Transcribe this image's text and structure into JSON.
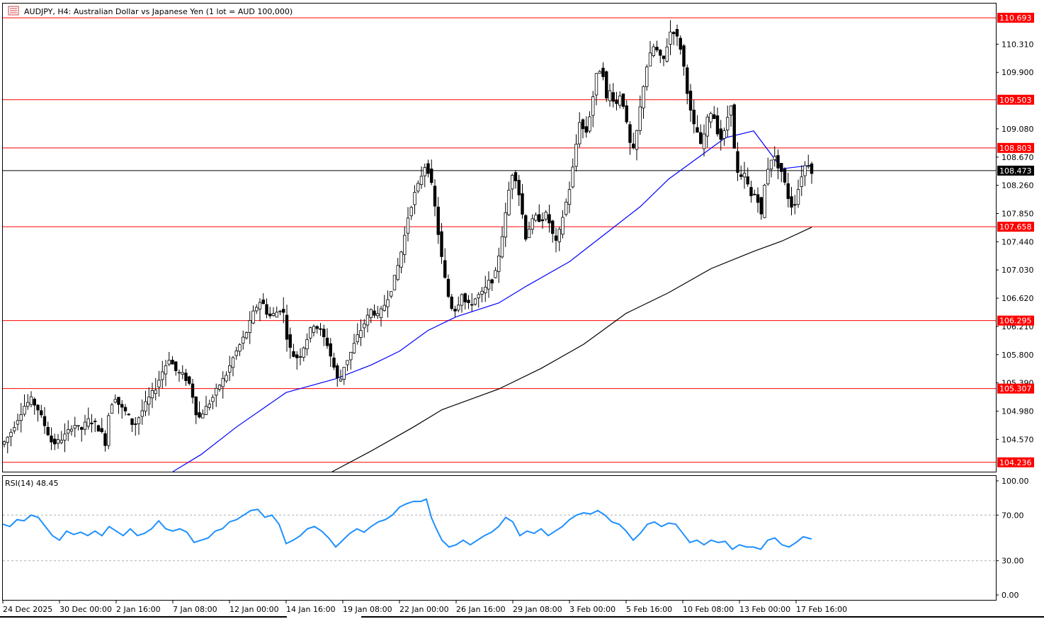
{
  "header": {
    "symbol_label": "AUDJPY, H4:  Australian Dollar vs Japanese Yen (1 lot = AUD 100,000)"
  },
  "colors": {
    "candle_up": "#000000",
    "candle_down": "#000000",
    "level_line": "#ff0000",
    "ma_fast": "#0000ff",
    "ma_slow": "#000000",
    "rsi_line": "#1e90ff",
    "current_price_bg": "#000000"
  },
  "chart_data": [
    {
      "type": "candlestick",
      "title": "AUDJPY, H4:  Australian Dollar vs Japanese Yen (1 lot = AUD 100,000)",
      "ylim": [
        104.1,
        110.9
      ],
      "y_ticks": [
        "110.310",
        "109.900",
        "109.080",
        "108.670",
        "108.260",
        "107.850",
        "107.440",
        "107.030",
        "106.620",
        "106.210",
        "105.800",
        "105.390",
        "104.980",
        "104.570"
      ],
      "x_ticks": [
        "24 Dec 2025",
        "30 Dec 00:00",
        "2 Jan 16:00",
        "7 Jan 08:00",
        "12 Jan 00:00",
        "14 Jan 16:00",
        "19 Jan 08:00",
        "22 Jan 00:00",
        "26 Jan 16:00",
        "29 Jan 08:00",
        "3 Feb 00:00",
        "5 Feb 16:00",
        "10 Feb 08:00",
        "13 Feb 00:00",
        "17 Feb 16:00"
      ],
      "levels": [
        {
          "value": 110.693,
          "label": "110.693"
        },
        {
          "value": 109.503,
          "label": "109.503"
        },
        {
          "value": 108.803,
          "label": "108.803"
        },
        {
          "value": 107.658,
          "label": "107.658"
        },
        {
          "value": 106.295,
          "label": "106.295"
        },
        {
          "value": 105.307,
          "label": "105.307"
        },
        {
          "value": 104.236,
          "label": "104.236"
        }
      ],
      "current_price": {
        "value": 108.473,
        "label": "108.473"
      },
      "price_path": [
        [
          0,
          104.5
        ],
        [
          10,
          104.65
        ],
        [
          20,
          104.85
        ],
        [
          30,
          105.05
        ],
        [
          40,
          105.15
        ],
        [
          50,
          105.0
        ],
        [
          60,
          104.75
        ],
        [
          70,
          104.5
        ],
        [
          80,
          104.55
        ],
        [
          90,
          104.65
        ],
        [
          100,
          104.8
        ],
        [
          110,
          104.7
        ],
        [
          120,
          104.85
        ],
        [
          130,
          104.8
        ],
        [
          140,
          104.65
        ],
        [
          145,
          104.5
        ],
        [
          150,
          105.0
        ],
        [
          158,
          105.2
        ],
        [
          165,
          105.05
        ],
        [
          175,
          104.95
        ],
        [
          185,
          104.75
        ],
        [
          195,
          104.95
        ],
        [
          205,
          105.15
        ],
        [
          215,
          105.3
        ],
        [
          225,
          105.55
        ],
        [
          235,
          105.75
        ],
        [
          245,
          105.55
        ],
        [
          255,
          105.5
        ],
        [
          265,
          105.35
        ],
        [
          275,
          104.85
        ],
        [
          285,
          105.0
        ],
        [
          295,
          105.15
        ],
        [
          305,
          105.35
        ],
        [
          315,
          105.5
        ],
        [
          325,
          105.75
        ],
        [
          335,
          105.95
        ],
        [
          345,
          106.15
        ],
        [
          355,
          106.45
        ],
        [
          365,
          106.6
        ],
        [
          375,
          106.35
        ],
        [
          385,
          106.4
        ],
        [
          395,
          106.5
        ],
        [
          400,
          106.1
        ],
        [
          408,
          105.8
        ],
        [
          418,
          105.75
        ],
        [
          428,
          106.0
        ],
        [
          438,
          106.25
        ],
        [
          448,
          106.15
        ],
        [
          458,
          105.95
        ],
        [
          468,
          105.6
        ],
        [
          475,
          105.35
        ],
        [
          480,
          105.6
        ],
        [
          490,
          105.8
        ],
        [
          500,
          106.05
        ],
        [
          510,
          106.25
        ],
        [
          520,
          106.45
        ],
        [
          530,
          106.35
        ],
        [
          540,
          106.55
        ],
        [
          550,
          106.8
        ],
        [
          558,
          107.1
        ],
        [
          565,
          107.4
        ],
        [
          572,
          107.8
        ],
        [
          580,
          108.1
        ],
        [
          588,
          108.3
        ],
        [
          595,
          108.55
        ],
        [
          602,
          108.45
        ],
        [
          608,
          108.1
        ],
        [
          613,
          107.7
        ],
        [
          618,
          107.3
        ],
        [
          625,
          106.85
        ],
        [
          632,
          106.5
        ],
        [
          640,
          106.45
        ],
        [
          648,
          106.7
        ],
        [
          655,
          106.5
        ],
        [
          662,
          106.55
        ],
        [
          670,
          106.65
        ],
        [
          678,
          106.7
        ],
        [
          686,
          106.85
        ],
        [
          694,
          106.9
        ],
        [
          702,
          107.35
        ],
        [
          710,
          107.85
        ],
        [
          718,
          108.45
        ],
        [
          725,
          108.35
        ],
        [
          732,
          107.95
        ],
        [
          738,
          107.5
        ],
        [
          745,
          107.7
        ],
        [
          752,
          107.8
        ],
        [
          760,
          107.75
        ],
        [
          768,
          107.85
        ],
        [
          776,
          107.55
        ],
        [
          782,
          107.4
        ],
        [
          788,
          107.7
        ],
        [
          795,
          108.0
        ],
        [
          802,
          108.3
        ],
        [
          808,
          108.75
        ],
        [
          815,
          109.25
        ],
        [
          822,
          108.95
        ],
        [
          830,
          109.35
        ],
        [
          838,
          109.85
        ],
        [
          846,
          110.0
        ],
        [
          852,
          109.5
        ],
        [
          858,
          109.65
        ],
        [
          865,
          109.4
        ],
        [
          872,
          109.6
        ],
        [
          878,
          109.35
        ],
        [
          884,
          108.9
        ],
        [
          890,
          108.75
        ],
        [
          896,
          109.1
        ],
        [
          902,
          109.55
        ],
        [
          908,
          109.95
        ],
        [
          914,
          110.15
        ],
        [
          920,
          110.3
        ],
        [
          926,
          110.15
        ],
        [
          932,
          110.05
        ],
        [
          938,
          110.3
        ],
        [
          944,
          110.55
        ],
        [
          950,
          110.45
        ],
        [
          956,
          110.3
        ],
        [
          962,
          109.95
        ],
        [
          968,
          109.5
        ],
        [
          974,
          109.15
        ],
        [
          980,
          109.05
        ],
        [
          986,
          108.8
        ],
        [
          992,
          109.1
        ],
        [
          998,
          109.35
        ],
        [
          1004,
          109.25
        ],
        [
          1010,
          109.0
        ],
        [
          1016,
          108.9
        ],
        [
          1022,
          109.2
        ],
        [
          1028,
          109.45
        ],
        [
          1034,
          108.6
        ],
        [
          1040,
          108.3
        ],
        [
          1046,
          108.45
        ],
        [
          1052,
          108.25
        ],
        [
          1058,
          108.05
        ],
        [
          1064,
          108.2
        ],
        [
          1070,
          107.75
        ],
        [
          1076,
          108.3
        ],
        [
          1082,
          108.6
        ],
        [
          1088,
          108.7
        ],
        [
          1094,
          108.55
        ],
        [
          1100,
          108.45
        ],
        [
          1106,
          108.2
        ],
        [
          1112,
          107.95
        ],
        [
          1118,
          108.0
        ],
        [
          1124,
          108.25
        ],
        [
          1130,
          108.5
        ],
        [
          1136,
          108.6
        ],
        [
          1142,
          108.47
        ]
      ],
      "ma_fast_path": [
        [
          240,
          104.1
        ],
        [
          280,
          104.35
        ],
        [
          330,
          104.75
        ],
        [
          400,
          105.25
        ],
        [
          470,
          105.45
        ],
        [
          520,
          105.65
        ],
        [
          560,
          105.85
        ],
        [
          600,
          106.15
        ],
        [
          640,
          106.35
        ],
        [
          700,
          106.55
        ],
        [
          740,
          106.8
        ],
        [
          800,
          107.15
        ],
        [
          850,
          107.55
        ],
        [
          900,
          107.95
        ],
        [
          940,
          108.35
        ],
        [
          980,
          108.65
        ],
        [
          1020,
          108.95
        ],
        [
          1060,
          109.05
        ],
        [
          1100,
          108.5
        ],
        [
          1140,
          108.55
        ]
      ],
      "ma_slow_path": [
        [
          465,
          104.1
        ],
        [
          520,
          104.4
        ],
        [
          580,
          104.75
        ],
        [
          620,
          105.0
        ],
        [
          700,
          105.3
        ],
        [
          760,
          105.6
        ],
        [
          820,
          105.95
        ],
        [
          880,
          106.4
        ],
        [
          940,
          106.7
        ],
        [
          1000,
          107.05
        ],
        [
          1060,
          107.3
        ],
        [
          1100,
          107.45
        ],
        [
          1142,
          107.65
        ]
      ]
    },
    {
      "type": "line",
      "title": "RSI(14) 48.45",
      "ylim": [
        0,
        100
      ],
      "y_ticks": [
        "100.00",
        "70.00",
        "30.00",
        "0.00"
      ],
      "levels": [
        70,
        30
      ],
      "series": [
        {
          "name": "RSI(14)",
          "values": [
            [
              0,
              62
            ],
            [
              10,
              60
            ],
            [
              20,
              66
            ],
            [
              30,
              65
            ],
            [
              40,
              70
            ],
            [
              50,
              68
            ],
            [
              60,
              60
            ],
            [
              70,
              52
            ],
            [
              80,
              48
            ],
            [
              90,
              56
            ],
            [
              100,
              53
            ],
            [
              110,
              55
            ],
            [
              120,
              52
            ],
            [
              130,
              56
            ],
            [
              140,
              52
            ],
            [
              150,
              60
            ],
            [
              160,
              56
            ],
            [
              170,
              52
            ],
            [
              180,
              58
            ],
            [
              190,
              52
            ],
            [
              200,
              54
            ],
            [
              210,
              58
            ],
            [
              220,
              65
            ],
            [
              230,
              58
            ],
            [
              240,
              56
            ],
            [
              250,
              58
            ],
            [
              260,
              55
            ],
            [
              270,
              46
            ],
            [
              280,
              48
            ],
            [
              290,
              50
            ],
            [
              300,
              56
            ],
            [
              310,
              58
            ],
            [
              320,
              64
            ],
            [
              330,
              66
            ],
            [
              340,
              70
            ],
            [
              350,
              74
            ],
            [
              360,
              75
            ],
            [
              370,
              68
            ],
            [
              380,
              70
            ],
            [
              390,
              62
            ],
            [
              400,
              45
            ],
            [
              410,
              48
            ],
            [
              420,
              52
            ],
            [
              430,
              58
            ],
            [
              440,
              60
            ],
            [
              450,
              56
            ],
            [
              460,
              50
            ],
            [
              470,
              42
            ],
            [
              480,
              48
            ],
            [
              490,
              54
            ],
            [
              500,
              58
            ],
            [
              510,
              55
            ],
            [
              520,
              60
            ],
            [
              530,
              64
            ],
            [
              540,
              66
            ],
            [
              550,
              70
            ],
            [
              560,
              77
            ],
            [
              570,
              80
            ],
            [
              580,
              82
            ],
            [
              590,
              82
            ],
            [
              598,
              84
            ],
            [
              605,
              68
            ],
            [
              612,
              58
            ],
            [
              620,
              48
            ],
            [
              630,
              42
            ],
            [
              640,
              44
            ],
            [
              650,
              48
            ],
            [
              660,
              44
            ],
            [
              670,
              48
            ],
            [
              680,
              52
            ],
            [
              690,
              55
            ],
            [
              700,
              60
            ],
            [
              710,
              68
            ],
            [
              720,
              64
            ],
            [
              730,
              52
            ],
            [
              740,
              56
            ],
            [
              750,
              54
            ],
            [
              760,
              58
            ],
            [
              770,
              52
            ],
            [
              780,
              56
            ],
            [
              790,
              60
            ],
            [
              800,
              66
            ],
            [
              810,
              70
            ],
            [
              820,
              72
            ],
            [
              830,
              71
            ],
            [
              840,
              74
            ],
            [
              850,
              70
            ],
            [
              860,
              64
            ],
            [
              870,
              62
            ],
            [
              880,
              56
            ],
            [
              890,
              48
            ],
            [
              900,
              54
            ],
            [
              910,
              62
            ],
            [
              920,
              64
            ],
            [
              930,
              60
            ],
            [
              940,
              63
            ],
            [
              950,
              62
            ],
            [
              960,
              54
            ],
            [
              970,
              46
            ],
            [
              980,
              48
            ],
            [
              990,
              44
            ],
            [
              1000,
              48
            ],
            [
              1010,
              46
            ],
            [
              1020,
              47
            ],
            [
              1030,
              40
            ],
            [
              1040,
              44
            ],
            [
              1050,
              42
            ],
            [
              1060,
              42
            ],
            [
              1070,
              40
            ],
            [
              1080,
              48
            ],
            [
              1090,
              50
            ],
            [
              1100,
              44
            ],
            [
              1110,
              42
            ],
            [
              1120,
              46
            ],
            [
              1130,
              51
            ],
            [
              1142,
              49
            ]
          ]
        }
      ]
    }
  ]
}
